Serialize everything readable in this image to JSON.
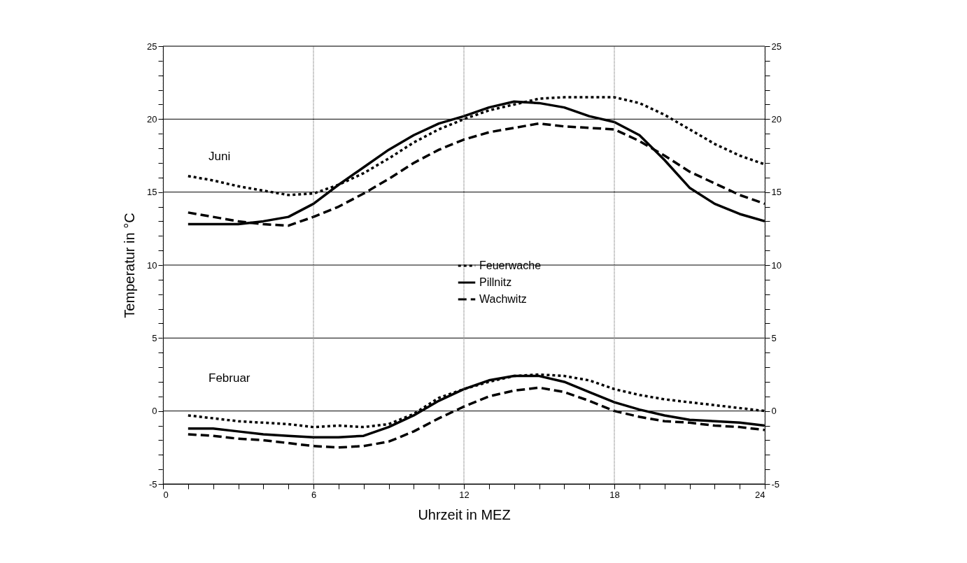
{
  "chart_data": {
    "type": "line",
    "xlabel": "Uhrzeit in MEZ",
    "ylabel": "Temperatur in °C",
    "y2label": null,
    "x": [
      1,
      2,
      3,
      4,
      5,
      6,
      7,
      8,
      9,
      10,
      11,
      12,
      13,
      14,
      15,
      16,
      17,
      18,
      19,
      20,
      21,
      22,
      23,
      24
    ],
    "series": [
      {
        "name": "Feuerwache",
        "color": "#000000",
        "line_style": "dotted",
        "values": [
          16.1,
          15.8,
          15.4,
          15.1,
          14.8,
          14.9,
          15.5,
          16.3,
          17.3,
          18.4,
          19.3,
          20.0,
          20.6,
          21.0,
          21.4,
          21.5,
          21.5,
          21.5,
          21.1,
          20.3,
          19.3,
          18.3,
          17.5,
          16.9
        ]
      },
      {
        "name": "Pillnitz",
        "color": "#000000",
        "line_style": "solid",
        "values": [
          12.8,
          12.8,
          12.8,
          13.0,
          13.3,
          14.2,
          15.5,
          16.7,
          17.9,
          18.9,
          19.7,
          20.2,
          20.8,
          21.2,
          21.1,
          20.8,
          20.2,
          19.8,
          18.9,
          17.2,
          15.3,
          14.2,
          13.5,
          13.0
        ]
      },
      {
        "name": "Wachwitz",
        "color": "#000000",
        "line_style": "dashed",
        "values": [
          13.6,
          13.3,
          13.0,
          12.8,
          12.7,
          13.3,
          14.0,
          14.9,
          15.9,
          17.0,
          17.9,
          18.6,
          19.1,
          19.4,
          19.7,
          19.5,
          19.4,
          19.3,
          18.5,
          17.5,
          16.4,
          15.6,
          14.8,
          14.2
        ]
      },
      {
        "color": "#000000",
        "line_style": "dotted",
        "values": [
          -0.3,
          -0.5,
          -0.7,
          -0.8,
          -0.9,
          -1.1,
          -1.0,
          -1.1,
          -0.9,
          -0.2,
          0.9,
          1.5,
          2.0,
          2.4,
          2.5,
          2.4,
          2.1,
          1.5,
          1.1,
          0.8,
          0.6,
          0.4,
          0.2,
          0.0
        ]
      },
      {
        "color": "#000000",
        "line_style": "solid",
        "values": [
          -1.2,
          -1.2,
          -1.4,
          -1.6,
          -1.7,
          -1.8,
          -1.8,
          -1.7,
          -1.1,
          -0.3,
          0.7,
          1.5,
          2.1,
          2.4,
          2.4,
          2.0,
          1.3,
          0.6,
          0.1,
          -0.3,
          -0.6,
          -0.7,
          -0.8,
          -1.0
        ]
      },
      {
        "color": "#000000",
        "line_style": "dashed",
        "values": [
          -1.6,
          -1.7,
          -1.9,
          -2.0,
          -2.2,
          -2.4,
          -2.5,
          -2.4,
          -2.1,
          -1.4,
          -0.5,
          0.3,
          1.0,
          1.4,
          1.6,
          1.3,
          0.7,
          0.0,
          -0.4,
          -0.7,
          -0.8,
          -1.0,
          -1.1,
          -1.3
        ]
      }
    ],
    "xlim": [
      0,
      24
    ],
    "xticks": [
      0,
      {
        "value": 1,
        "label": null
      },
      {
        "value": 2,
        "label": null
      },
      {
        "value": 3,
        "label": null
      },
      {
        "value": 4,
        "label": null
      },
      {
        "value": 5,
        "label": null
      },
      6,
      {
        "value": 7,
        "label": null
      },
      {
        "value": 8,
        "label": null
      },
      {
        "value": 9,
        "label": null
      },
      {
        "value": 10,
        "label": null
      },
      {
        "value": 11,
        "label": null
      },
      12,
      {
        "value": 13,
        "label": null
      },
      {
        "value": 14,
        "label": null
      },
      {
        "value": 15,
        "label": null
      },
      {
        "value": 16,
        "label": null
      },
      {
        "value": 17,
        "label": null
      },
      18,
      {
        "value": 19,
        "label": null
      },
      {
        "value": 20,
        "label": null
      },
      {
        "value": 21,
        "label": null
      },
      {
        "value": 22,
        "label": null
      },
      {
        "value": 23,
        "label": null
      },
      24
    ],
    "ylim": [
      -5,
      25
    ],
    "yticks": [
      -5,
      {
        "value": -4,
        "label": null
      },
      {
        "value": -3,
        "label": null
      },
      {
        "value": -2,
        "label": null
      },
      {
        "value": -1,
        "label": null
      },
      0,
      {
        "value": 1,
        "label": null
      },
      {
        "value": 2,
        "label": null
      },
      {
        "value": 3,
        "label": null
      },
      {
        "value": 4,
        "label": null
      },
      5,
      {
        "value": 6,
        "label": null
      },
      {
        "value": 7,
        "label": null
      },
      {
        "value": 8,
        "label": null
      },
      {
        "value": 9,
        "label": null
      },
      10,
      {
        "value": 11,
        "label": null
      },
      {
        "value": 12,
        "label": null
      },
      {
        "value": 13,
        "label": null
      },
      {
        "value": 14,
        "label": null
      },
      15,
      {
        "value": 16,
        "label": null
      },
      {
        "value": 17,
        "label": null
      },
      {
        "value": 18,
        "label": null
      },
      {
        "value": 19,
        "label": null
      },
      20,
      {
        "value": 21,
        "label": null
      },
      {
        "value": 22,
        "label": null
      },
      {
        "value": 23,
        "label": null
      },
      {
        "value": 24,
        "label": null
      },
      25
    ],
    "y2lim": [
      -5,
      25
    ],
    "y2ticks": [
      -5,
      {
        "value": -4,
        "label": null
      },
      {
        "value": -3,
        "label": null
      },
      {
        "value": -2,
        "label": null
      },
      {
        "value": -1,
        "label": null
      },
      0,
      {
        "value": 1,
        "label": null
      },
      {
        "value": 2,
        "label": null
      },
      {
        "value": 3,
        "label": null
      },
      {
        "value": 4,
        "label": null
      },
      5,
      {
        "value": 6,
        "label": null
      },
      {
        "value": 7,
        "label": null
      },
      {
        "value": 8,
        "label": null
      },
      {
        "value": 9,
        "label": null
      },
      10,
      {
        "value": 11,
        "label": null
      },
      {
        "value": 12,
        "label": null
      },
      {
        "value": 13,
        "label": null
      },
      {
        "value": 14,
        "label": null
      },
      15,
      {
        "value": 16,
        "label": null
      },
      {
        "value": 17,
        "label": null
      },
      {
        "value": 18,
        "label": null
      },
      {
        "value": 19,
        "label": null
      },
      20,
      {
        "value": 21,
        "label": null
      },
      {
        "value": 22,
        "label": null
      },
      {
        "value": 23,
        "label": null
      },
      {
        "value": 24,
        "label": null
      },
      25
    ],
    "grid": true,
    "legend": "center",
    "annotations": [
      "Juni",
      "Februar"
    ]
  }
}
